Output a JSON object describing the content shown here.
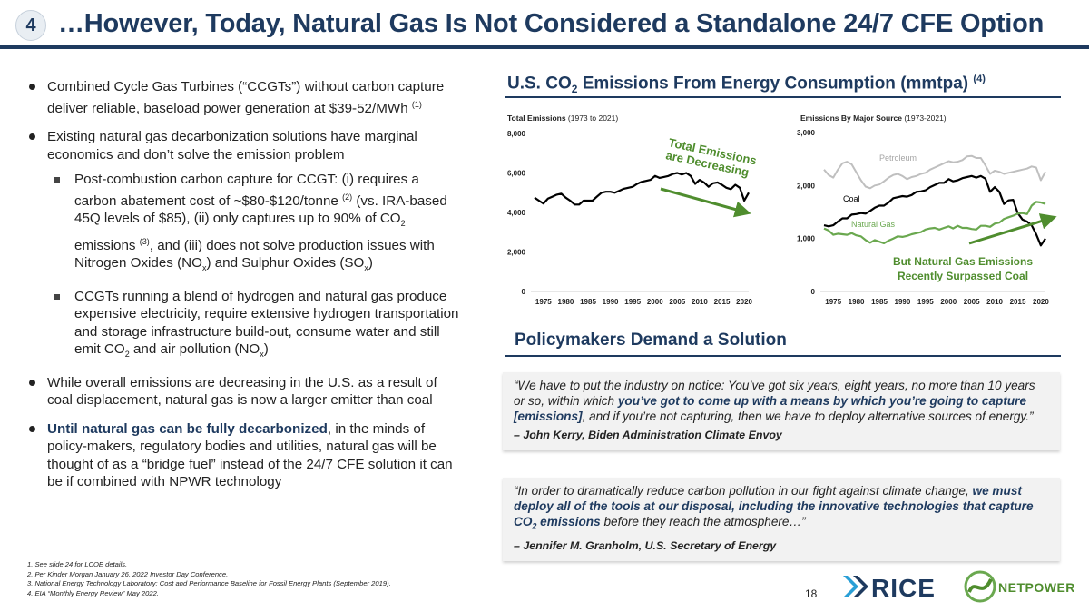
{
  "slide": {
    "number": "4",
    "title": "…However, Today, Natural Gas Is Not Considered a Standalone 24/7 CFE Option",
    "page_number": "18"
  },
  "left": {
    "b1_text": "Combined Cycle Gas Turbines (“CCGTs”) without carbon capture deliver reliable, baseload power generation at $39-52/MWh",
    "b1_ref": "(1)",
    "b2_text": "Existing natural gas decarbonization solutions have marginal economics and don’t solve the emission problem",
    "s1_a": "Post-combustion carbon capture for CCGT: (i) requires a carbon abatement cost of ~$80-$120/tonne",
    "s1_ref2": "(2)",
    "s1_b": "(vs. IRA-based 45Q levels of $85), (ii) only captures up to 90% of CO",
    "s1_sub2": "2",
    "s1_c": "emissions",
    "s1_ref3": "(3)",
    "s1_d": ", and (iii) does not solve production issues with Nitrogen Oxides (NO",
    "s1_subx": "x",
    "s1_e": ") and Sulphur Oxides (SO",
    "s1_subx2": "x",
    "s1_f": ")",
    "s2_a": "CCGTs running a blend of hydrogen and natural gas produce expensive electricity, require extensive hydrogen transportation and storage infrastructure build-out, consume water and still emit CO",
    "s2_sub2": "2",
    "s2_b": "and air pollution (NO",
    "s2_subx": "x",
    "s2_c": ")",
    "b3_text": "While overall emissions are decreasing in the U.S. as a result of coal displacement, natural gas is now a larger emitter than coal",
    "b4_bold": "Until natural gas can be fully decarbonized",
    "b4_text": ", in the minds of policy-makers, regulatory bodies and utilities, natural gas will be thought of as a “bridge fuel” instead of the 24/7 CFE solution it can be if combined with NPWR technology"
  },
  "footnotes": [
    "1.  See slide 24 for LCOE details.",
    "2.  Per Kinder Morgan January 26, 2022 Investor Day Conference.",
    "3.  National Energy Technology Laboratory: Cost and Performance Baseline for Fossil Energy Plants (September 2019).",
    "4.  EIA “Monthly Energy Review” May 2022."
  ],
  "right": {
    "heading_a": "U.S. CO",
    "heading_sub": "2",
    "heading_b": " Emissions From Energy Consumption (mmtpa)",
    "heading_ref": "(4)",
    "chart1_title_bold": "Total Emissions",
    "chart1_title_rest": " (1973 to 2021)",
    "chart2_title_bold": "Emissions By Major Source",
    "chart2_title_rest": " (1973-2021)",
    "chart1_callout_1": "Total Emissions",
    "chart1_callout_2": "are Decreasing",
    "chart2_callout_1": "But Natural Gas Emissions",
    "chart2_callout_2": "Recently Surpassed Coal",
    "policy_heading": "Policymakers Demand a Solution"
  },
  "quotes": {
    "q1_a": "“We have to put the industry on notice: You’ve got six years, eight years, no more than 10 years or so, within which ",
    "q1_bold": "you’ve got to come up with a means by which you’re going to capture [emissions]",
    "q1_b": ", and if you’re not capturing, then we have to deploy alternative sources of energy.”",
    "q1_attr": "– John Kerry, Biden Administration Climate Envoy",
    "q2_a": "“In order to dramatically reduce carbon pollution in our fight against climate change, ",
    "q2_bold": "we must deploy all of the tools at our disposal, including the innovative technologies that capture CO",
    "q2_sub": "2",
    "q2_bold2": " emissions",
    "q2_b": " before they reach the atmosphere…”",
    "q2_attr": "– Jennifer M. Granholm, U.S. Secretary of Energy"
  },
  "logos": {
    "rice": "RICE",
    "netpower": "NETPOWER"
  },
  "colors": {
    "navy": "#1e3a5f",
    "green": "#4f8d2e",
    "petroleum": "#bfbfbf",
    "coal": "#000000",
    "natural_gas": "#6aa84f"
  },
  "chart_data": [
    {
      "type": "line",
      "title": "Total Emissions",
      "subtitle": "(1973 to 2021)",
      "x": [
        1973,
        1974,
        1975,
        1976,
        1977,
        1978,
        1979,
        1980,
        1981,
        1982,
        1983,
        1984,
        1985,
        1986,
        1987,
        1988,
        1989,
        1990,
        1991,
        1992,
        1993,
        1994,
        1995,
        1996,
        1997,
        1998,
        1999,
        2000,
        2001,
        2002,
        2003,
        2004,
        2005,
        2006,
        2007,
        2008,
        2009,
        2010,
        2011,
        2012,
        2013,
        2014,
        2015,
        2016,
        2017,
        2018,
        2019,
        2020,
        2021
      ],
      "series": [
        {
          "values": [
            4750,
            4600,
            4450,
            4700,
            4800,
            4900,
            4950,
            4750,
            4600,
            4400,
            4400,
            4600,
            4600,
            4600,
            4800,
            5000,
            5050,
            5050,
            5000,
            5100,
            5200,
            5250,
            5300,
            5450,
            5550,
            5600,
            5650,
            5850,
            5750,
            5800,
            5850,
            5950,
            6000,
            5920,
            6000,
            5850,
            5450,
            5650,
            5520,
            5300,
            5480,
            5520,
            5400,
            5250,
            5180,
            5400,
            5250,
            4600,
            5000
          ]
        }
      ],
      "xticks": [
        1975,
        1980,
        1985,
        1990,
        1995,
        2000,
        2005,
        2010,
        2015,
        2020
      ],
      "yticks": [
        0,
        2000,
        4000,
        6000,
        8000
      ],
      "ylim": [
        0,
        8000
      ],
      "annotations": [
        "Total Emissions",
        "are Decreasing"
      ]
    },
    {
      "type": "line",
      "title": "Emissions By Major Source",
      "subtitle": "(1973-2021)",
      "x": [
        1973,
        1974,
        1975,
        1976,
        1977,
        1978,
        1979,
        1980,
        1981,
        1982,
        1983,
        1984,
        1985,
        1986,
        1987,
        1988,
        1989,
        1990,
        1991,
        1992,
        1993,
        1994,
        1995,
        1996,
        1997,
        1998,
        1999,
        2000,
        2001,
        2002,
        2003,
        2004,
        2005,
        2006,
        2007,
        2008,
        2009,
        2010,
        2011,
        2012,
        2013,
        2014,
        2015,
        2016,
        2017,
        2018,
        2019,
        2020,
        2021
      ],
      "series": [
        {
          "name": "Petroleum",
          "values": [
            2300,
            2200,
            2150,
            2300,
            2420,
            2450,
            2400,
            2250,
            2100,
            1980,
            1950,
            2000,
            2020,
            2080,
            2150,
            2200,
            2220,
            2180,
            2120,
            2160,
            2180,
            2220,
            2240,
            2300,
            2340,
            2380,
            2420,
            2460,
            2440,
            2450,
            2480,
            2550,
            2560,
            2520,
            2520,
            2380,
            2220,
            2280,
            2260,
            2220,
            2240,
            2260,
            2280,
            2300,
            2320,
            2360,
            2340,
            2100,
            2260
          ]
        },
        {
          "name": "Coal",
          "values": [
            1250,
            1230,
            1250,
            1320,
            1380,
            1380,
            1450,
            1460,
            1480,
            1470,
            1520,
            1580,
            1620,
            1620,
            1680,
            1760,
            1780,
            1800,
            1790,
            1820,
            1880,
            1890,
            1910,
            1970,
            2010,
            2050,
            2050,
            2120,
            2080,
            2100,
            2140,
            2160,
            2180,
            2150,
            2180,
            2130,
            1880,
            1970,
            1880,
            1650,
            1720,
            1730,
            1480,
            1360,
            1320,
            1250,
            1080,
            870,
            1000
          ]
        },
        {
          "name": "Natural Gas",
          "values": [
            1190,
            1150,
            1070,
            1090,
            1080,
            1070,
            1100,
            1060,
            1040,
            970,
            920,
            970,
            940,
            910,
            960,
            1000,
            1040,
            1030,
            1050,
            1080,
            1100,
            1120,
            1170,
            1190,
            1200,
            1170,
            1200,
            1230,
            1190,
            1240,
            1200,
            1200,
            1180,
            1170,
            1240,
            1240,
            1220,
            1280,
            1300,
            1370,
            1400,
            1430,
            1470,
            1480,
            1460,
            1620,
            1690,
            1680,
            1650
          ]
        }
      ],
      "xticks": [
        1975,
        1980,
        1985,
        1990,
        1995,
        2000,
        2005,
        2010,
        2015,
        2020
      ],
      "yticks": [
        0,
        1000,
        2000,
        3000
      ],
      "ylim": [
        0,
        3000
      ],
      "annotations": [
        "But Natural Gas Emissions",
        "Recently Surpassed Coal"
      ]
    }
  ]
}
